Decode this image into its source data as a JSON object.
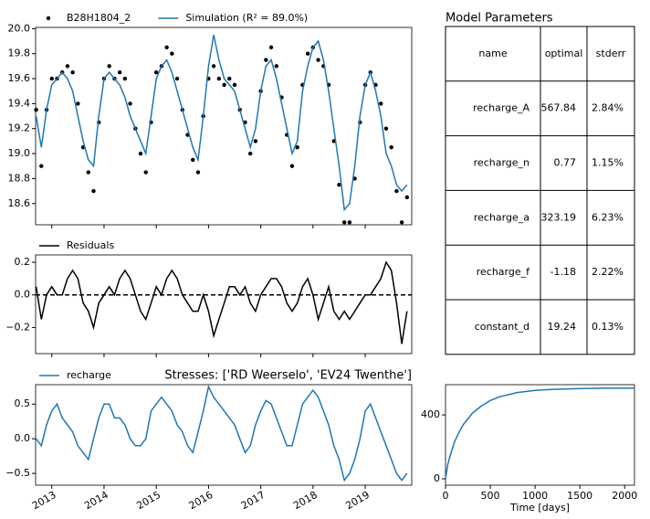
{
  "chart_data": [
    {
      "type": "line",
      "xlim": [
        2012.69,
        2019.89
      ],
      "xticks": [
        2013,
        2014,
        2015,
        2016,
        2017,
        2018,
        2019
      ],
      "xtick_labels": false,
      "ylim": [
        18.43,
        20.01
      ],
      "yticks": [
        18.6,
        18.8,
        {
          "value": 19,
          "label": "19.0"
        },
        19.2,
        19.4,
        19.6,
        19.8,
        {
          "value": 20,
          "label": "20.0"
        }
      ],
      "x": [
        2012.7,
        2012.8,
        2012.9,
        2013.0,
        2013.1,
        2013.2,
        2013.3,
        2013.4,
        2013.5,
        2013.6,
        2013.7,
        2013.8,
        2013.9,
        2014.0,
        2014.1,
        2014.2,
        2014.3,
        2014.4,
        2014.5,
        2014.6,
        2014.7,
        2014.8,
        2014.9,
        2015.0,
        2015.1,
        2015.2,
        2015.3,
        2015.4,
        2015.5,
        2015.6,
        2015.7,
        2015.8,
        2015.9,
        2016.0,
        2016.1,
        2016.2,
        2016.3,
        2016.4,
        2016.5,
        2016.6,
        2016.7,
        2016.8,
        2016.9,
        2017.0,
        2017.1,
        2017.2,
        2017.3,
        2017.4,
        2017.5,
        2017.6,
        2017.7,
        2017.8,
        2017.9,
        2018.0,
        2018.1,
        2018.2,
        2018.3,
        2018.4,
        2018.5,
        2018.6,
        2018.7,
        2018.8,
        2018.9,
        2019.0,
        2019.1,
        2019.2,
        2019.3,
        2019.4,
        2019.5,
        2019.6,
        2019.7,
        2019.8
      ],
      "series": [
        {
          "name": "B28H1804_2",
          "kind": "dots",
          "color": "#000000",
          "values": [
            19.35,
            18.9,
            19.35,
            19.6,
            19.6,
            19.65,
            19.7,
            19.65,
            19.4,
            19.05,
            18.85,
            18.7,
            19.25,
            19.6,
            19.7,
            19.6,
            19.65,
            19.6,
            19.4,
            19.2,
            19.0,
            18.85,
            19.25,
            19.65,
            19.7,
            19.85,
            19.8,
            19.6,
            19.35,
            19.15,
            18.95,
            18.85,
            19.3,
            19.6,
            19.7,
            19.6,
            19.55,
            19.6,
            19.55,
            19.35,
            19.25,
            19.0,
            19.1,
            19.5,
            19.75,
            19.85,
            19.7,
            19.45,
            19.15,
            18.9,
            19.05,
            19.55,
            19.8,
            19.85,
            19.75,
            19.7,
            19.55,
            19.1,
            18.75,
            18.45,
            18.45,
            18.8,
            19.25,
            19.55,
            19.65,
            19.55,
            19.4,
            19.2,
            19.05,
            18.7,
            18.45,
            18.65
          ]
        },
        {
          "name": "Simulation (R² = 89.0%)",
          "kind": "line",
          "color": "#1f77b4",
          "values": [
            19.3,
            19.05,
            19.35,
            19.55,
            19.6,
            19.65,
            19.6,
            19.5,
            19.3,
            19.1,
            18.95,
            18.9,
            19.3,
            19.6,
            19.65,
            19.6,
            19.55,
            19.45,
            19.3,
            19.2,
            19.1,
            19.0,
            19.3,
            19.6,
            19.7,
            19.75,
            19.65,
            19.5,
            19.35,
            19.2,
            19.05,
            18.95,
            19.3,
            19.7,
            19.95,
            19.75,
            19.6,
            19.55,
            19.5,
            19.35,
            19.2,
            19.05,
            19.2,
            19.5,
            19.7,
            19.75,
            19.6,
            19.4,
            19.2,
            19.0,
            19.1,
            19.5,
            19.7,
            19.85,
            19.9,
            19.75,
            19.5,
            19.2,
            18.9,
            18.55,
            18.6,
            18.9,
            19.3,
            19.55,
            19.65,
            19.5,
            19.3,
            19.0,
            18.9,
            18.75,
            18.7,
            18.75
          ]
        }
      ]
    },
    {
      "type": "line",
      "xlim": [
        2012.69,
        2019.89
      ],
      "xticks": [
        2013,
        2014,
        2015,
        2016,
        2017,
        2018,
        2019
      ],
      "xtick_labels": false,
      "ylim": [
        -0.36,
        0.245
      ],
      "yticks": [
        {
          "value": -0.2,
          "label": "−0.2"
        },
        {
          "value": 0,
          "label": "0.0"
        },
        0.2
      ],
      "hline": 0,
      "x": [
        2012.7,
        2012.8,
        2012.9,
        2013.0,
        2013.1,
        2013.2,
        2013.3,
        2013.4,
        2013.5,
        2013.6,
        2013.7,
        2013.8,
        2013.9,
        2014.0,
        2014.1,
        2014.2,
        2014.3,
        2014.4,
        2014.5,
        2014.6,
        2014.7,
        2014.8,
        2014.9,
        2015.0,
        2015.1,
        2015.2,
        2015.3,
        2015.4,
        2015.5,
        2015.6,
        2015.7,
        2015.8,
        2015.9,
        2016.0,
        2016.1,
        2016.2,
        2016.3,
        2016.4,
        2016.5,
        2016.6,
        2016.7,
        2016.8,
        2016.9,
        2017.0,
        2017.1,
        2017.2,
        2017.3,
        2017.4,
        2017.5,
        2017.6,
        2017.7,
        2017.8,
        2017.9,
        2018.0,
        2018.1,
        2018.2,
        2018.3,
        2018.4,
        2018.5,
        2018.6,
        2018.7,
        2018.8,
        2018.9,
        2019.0,
        2019.1,
        2019.2,
        2019.3,
        2019.4,
        2019.5,
        2019.6,
        2019.7,
        2019.8
      ],
      "series": [
        {
          "name": "Residuals",
          "kind": "line",
          "color": "#000000",
          "values": [
            0.05,
            -0.15,
            0.0,
            0.05,
            0.0,
            0.0,
            0.1,
            0.15,
            0.1,
            -0.05,
            -0.1,
            -0.2,
            -0.05,
            0.0,
            0.05,
            0.0,
            0.1,
            0.15,
            0.1,
            0.0,
            -0.1,
            -0.15,
            -0.05,
            0.05,
            0.0,
            0.1,
            0.15,
            0.1,
            0.0,
            -0.05,
            -0.1,
            -0.1,
            0.0,
            -0.1,
            -0.25,
            -0.15,
            -0.05,
            0.05,
            0.05,
            0.0,
            0.05,
            -0.05,
            -0.1,
            0.0,
            0.05,
            0.1,
            0.1,
            0.05,
            -0.05,
            -0.1,
            -0.05,
            0.05,
            0.1,
            0.0,
            -0.15,
            -0.05,
            0.05,
            -0.1,
            -0.15,
            -0.1,
            -0.15,
            -0.1,
            -0.05,
            0.0,
            0.0,
            0.05,
            0.1,
            0.2,
            0.15,
            -0.05,
            -0.3,
            -0.1
          ]
        }
      ]
    },
    {
      "type": "line",
      "title": "Stresses: ['RD Weerselo', 'EV24 Twenthe']",
      "xlim": [
        2012.69,
        2019.89
      ],
      "xticks": [
        2013,
        2014,
        2015,
        2016,
        2017,
        2018,
        2019
      ],
      "xtick_rotate": true,
      "ylim": [
        -0.67,
        0.78
      ],
      "yticks": [
        {
          "value": -0.5,
          "label": "−0.5"
        },
        {
          "value": 0,
          "label": "0.0"
        },
        0.5
      ],
      "x": [
        2012.7,
        2012.8,
        2012.9,
        2013.0,
        2013.1,
        2013.2,
        2013.3,
        2013.4,
        2013.5,
        2013.6,
        2013.7,
        2013.8,
        2013.9,
        2014.0,
        2014.1,
        2014.2,
        2014.3,
        2014.4,
        2014.5,
        2014.6,
        2014.7,
        2014.8,
        2014.9,
        2015.0,
        2015.1,
        2015.2,
        2015.3,
        2015.4,
        2015.5,
        2015.6,
        2015.7,
        2015.8,
        2015.9,
        2016.0,
        2016.1,
        2016.2,
        2016.3,
        2016.4,
        2016.5,
        2016.6,
        2016.7,
        2016.8,
        2016.9,
        2017.0,
        2017.1,
        2017.2,
        2017.3,
        2017.4,
        2017.5,
        2017.6,
        2017.7,
        2017.8,
        2017.9,
        2018.0,
        2018.1,
        2018.2,
        2018.3,
        2018.4,
        2018.5,
        2018.6,
        2018.7,
        2018.8,
        2018.9,
        2019.0,
        2019.1,
        2019.2,
        2019.3,
        2019.4,
        2019.5,
        2019.6,
        2019.7,
        2019.8
      ],
      "series": [
        {
          "name": "recharge",
          "kind": "line",
          "color": "#1f77b4",
          "values": [
            0.0,
            -0.1,
            0.2,
            0.4,
            0.5,
            0.3,
            0.2,
            0.1,
            -0.1,
            -0.2,
            -0.3,
            0.0,
            0.3,
            0.5,
            0.5,
            0.3,
            0.3,
            0.2,
            0.0,
            -0.1,
            -0.1,
            0.0,
            0.4,
            0.5,
            0.6,
            0.5,
            0.4,
            0.2,
            0.1,
            -0.1,
            -0.2,
            0.1,
            0.4,
            0.75,
            0.6,
            0.5,
            0.4,
            0.3,
            0.2,
            0.0,
            -0.2,
            -0.1,
            0.2,
            0.4,
            0.55,
            0.5,
            0.3,
            0.1,
            -0.1,
            -0.1,
            0.2,
            0.5,
            0.6,
            0.7,
            0.6,
            0.4,
            0.2,
            -0.1,
            -0.3,
            -0.6,
            -0.5,
            -0.3,
            0.0,
            0.4,
            0.5,
            0.3,
            0.1,
            -0.1,
            -0.3,
            -0.5,
            -0.6,
            -0.5
          ]
        }
      ]
    },
    {
      "type": "line",
      "xlabel": "Time [days]",
      "xlim": [
        0,
        2110
      ],
      "xticks": [
        0,
        500,
        1000,
        1500,
        2000
      ],
      "ylim": [
        -40,
        589
      ],
      "yticks": [
        0,
        400
      ],
      "x": [
        0,
        25,
        50,
        100,
        150,
        200,
        300,
        400,
        500,
        600,
        800,
        1000,
        1200,
        1500,
        1800,
        2110
      ],
      "series": [
        {
          "kind": "line",
          "color": "#1f77b4",
          "values": [
            0,
            90,
            140,
            230,
            290,
            340,
            410,
            455,
            490,
            513,
            540,
            553,
            560,
            565,
            567,
            567.5
          ]
        }
      ]
    }
  ],
  "table": {
    "title": "Model Parameters",
    "columns": [
      "name",
      "optimal",
      "stderr"
    ],
    "rows": [
      [
        "recharge_A",
        "567.84",
        "2.84%"
      ],
      [
        "recharge_n",
        "0.77",
        "1.15%"
      ],
      [
        "recharge_a",
        "323.19",
        "6.23%"
      ],
      [
        "recharge_f",
        "-1.18",
        "2.22%"
      ],
      [
        "constant_d",
        "19.24",
        "0.13%"
      ]
    ]
  }
}
